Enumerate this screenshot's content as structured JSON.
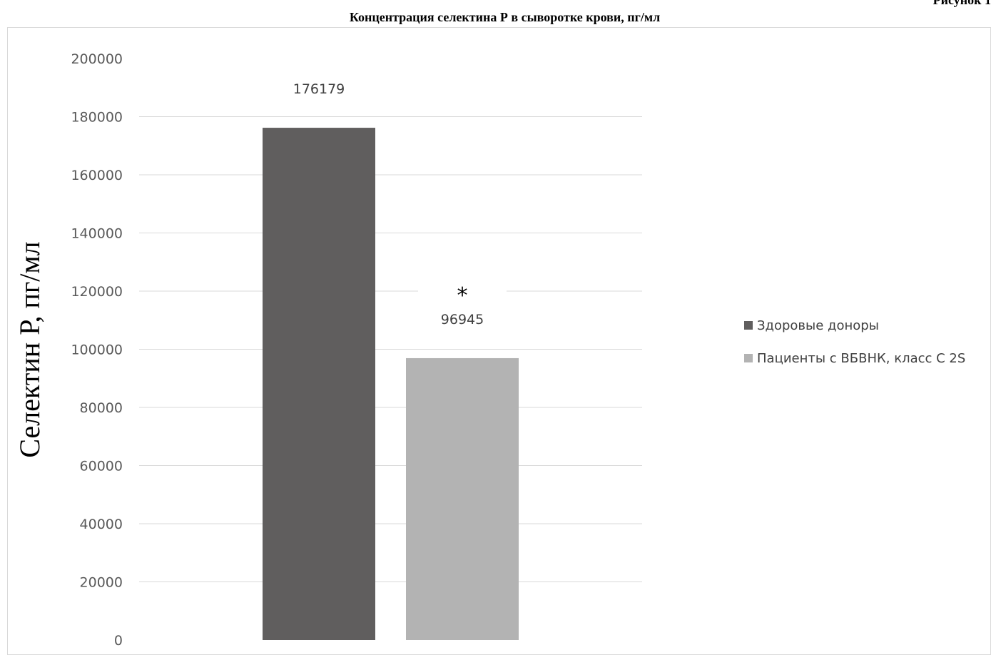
{
  "corner_label": "Рисунок 1",
  "chart_data": {
    "type": "bar",
    "title": "Концентрация селектина Р в сыворотке крови, пг/мл",
    "ylabel": "Селектин Р, пг/мл",
    "xlabel": "",
    "ylim": [
      0,
      200000
    ],
    "yticks": [
      "0",
      "20000",
      "40000",
      "60000",
      "80000",
      "100000",
      "120000",
      "140000",
      "160000",
      "180000",
      "200000"
    ],
    "grid": true,
    "legend_position": "right",
    "series": [
      {
        "name": "Здоровые доноры",
        "value": 176179,
        "label": "176179",
        "color": "#605e5e"
      },
      {
        "name": "Пациенты с ВБВНК, класс С 2S",
        "value": 96945,
        "label": "96945",
        "color": "#b3b3b3",
        "annotation": "*"
      }
    ]
  }
}
